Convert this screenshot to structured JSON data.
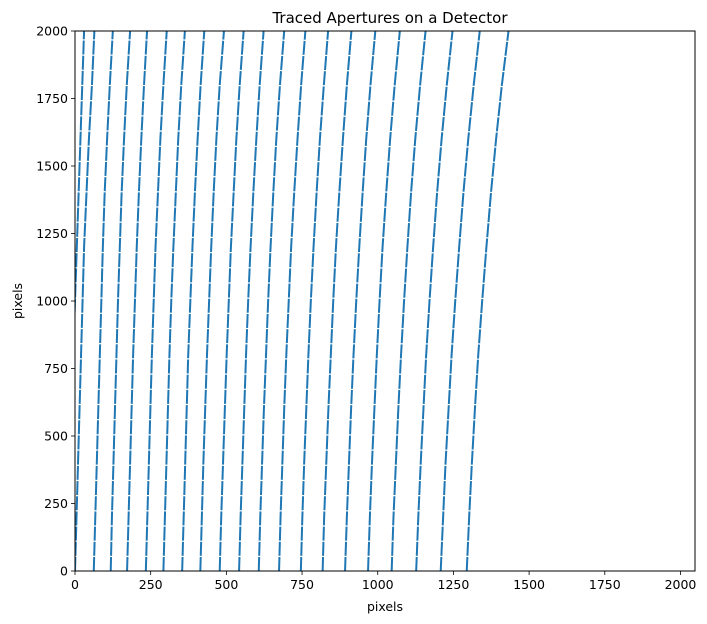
{
  "chart_data": {
    "type": "line",
    "title": "Traced Apertures on a Detector",
    "xlabel": "pixels",
    "ylabel": "pixels",
    "xlim": [
      0,
      2048
    ],
    "ylim": [
      0,
      2000
    ],
    "xticks": [
      0,
      250,
      500,
      750,
      1000,
      1250,
      1500,
      1750,
      2000
    ],
    "yticks": [
      0,
      250,
      500,
      750,
      1000,
      1250,
      1500,
      1750,
      2000
    ],
    "grid": false,
    "legend": "none",
    "line_color": "#1f77b4",
    "y_samples": [
      0,
      200,
      400,
      600,
      800,
      1000,
      1200,
      1400,
      1600,
      1800,
      2000
    ],
    "series": [
      {
        "x": [
          -30,
          -25,
          -18,
          -12,
          -6,
          0,
          6,
          12,
          18,
          24,
          30
        ]
      },
      {
        "x": [
          0,
          5,
          10,
          15,
          20,
          25,
          30,
          38,
          46,
          56,
          64
        ]
      },
      {
        "x": [
          62,
          67,
          72,
          77,
          82,
          87,
          92,
          98,
          106,
          115,
          125
        ]
      },
      {
        "x": [
          118,
          122,
          127,
          132,
          137,
          142,
          148,
          154,
          162,
          171,
          182
        ]
      },
      {
        "x": [
          172,
          177,
          182,
          187,
          192,
          198,
          204,
          211,
          219,
          228,
          238
        ]
      },
      {
        "x": [
          234,
          239,
          244,
          249,
          254,
          260,
          266,
          274,
          282,
          292,
          303
        ]
      },
      {
        "x": [
          292,
          297,
          302,
          307,
          312,
          318,
          325,
          333,
          341,
          351,
          363
        ]
      },
      {
        "x": [
          354,
          359,
          364,
          369,
          374,
          381,
          388,
          396,
          405,
          415,
          427
        ]
      },
      {
        "x": [
          414,
          419,
          424,
          430,
          436,
          443,
          450,
          458,
          467,
          478,
          492
        ]
      },
      {
        "x": [
          478,
          483,
          489,
          495,
          501,
          508,
          515,
          524,
          533,
          544,
          557
        ]
      },
      {
        "x": [
          542,
          547,
          553,
          559,
          565,
          572,
          580,
          589,
          599,
          610,
          623
        ]
      },
      {
        "x": [
          607,
          612,
          618,
          624,
          631,
          638,
          646,
          655,
          665,
          677,
          691
        ]
      },
      {
        "x": [
          674,
          679,
          685,
          691,
          698,
          706,
          714,
          724,
          735,
          747,
          761
        ]
      },
      {
        "x": [
          746,
          751,
          757,
          764,
          771,
          779,
          788,
          798,
          809,
          822,
          836
        ]
      },
      {
        "x": [
          818,
          823,
          830,
          837,
          845,
          853,
          862,
          873,
          885,
          898,
          913
        ]
      },
      {
        "x": [
          892,
          898,
          905,
          912,
          920,
          929,
          939,
          950,
          962,
          976,
          992
        ]
      },
      {
        "x": [
          968,
          974,
          981,
          989,
          997,
          1006,
          1016,
          1028,
          1041,
          1056,
          1073
        ]
      },
      {
        "x": [
          1046,
          1052,
          1060,
          1068,
          1077,
          1087,
          1098,
          1110,
          1124,
          1140,
          1158
        ]
      },
      {
        "x": [
          1127,
          1134,
          1142,
          1151,
          1160,
          1171,
          1183,
          1196,
          1211,
          1228,
          1247
        ]
      },
      {
        "x": [
          1208,
          1216,
          1224,
          1234,
          1244,
          1256,
          1269,
          1283,
          1299,
          1317,
          1337
        ]
      },
      {
        "x": [
          1294,
          1302,
          1311,
          1321,
          1332,
          1345,
          1359,
          1374,
          1391,
          1410,
          1432
        ]
      }
    ]
  }
}
